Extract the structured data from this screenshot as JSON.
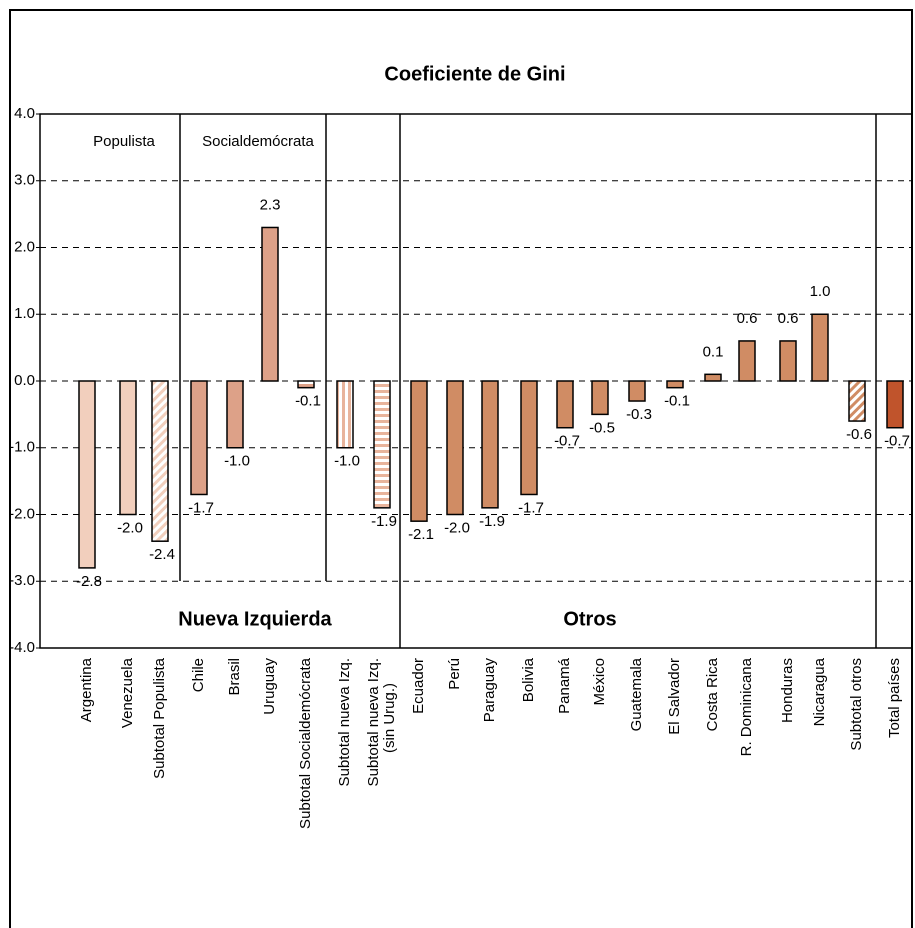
{
  "chart_data": {
    "type": "bar",
    "title": "Coeficiente de Gini",
    "categories": [
      "Argentina",
      "Venezuela",
      "Subtotal Populista",
      "Chile",
      "Brasil",
      "Uruguay",
      "Subtotal Socialdemócrata",
      "Subtotal nueva Izq.",
      "Subtotal nueva Izq.\n(sin Urug.)",
      "Ecuador",
      "Perú",
      "Paraguay",
      "Bolivia",
      "Panamá",
      "México",
      "Guatemala",
      "El Salvador",
      "Costa Rica",
      "R. Dominicana",
      "Honduras",
      "Nicaragua",
      "Subtotal otros",
      "Total países"
    ],
    "values": [
      -2.8,
      -2.0,
      -2.4,
      -1.7,
      -1.0,
      2.3,
      -0.1,
      -1.0,
      -1.9,
      -2.1,
      -2.0,
      -1.9,
      -1.7,
      -0.7,
      -0.5,
      -0.3,
      -0.1,
      0.1,
      0.6,
      0.6,
      1.0,
      -0.6,
      -0.7
    ],
    "value_labels": [
      "-2.8",
      "-2.0",
      "-2.4",
      "-1.7",
      "-1.0",
      "2.3",
      "-0.1",
      "-1.0",
      "-1.9",
      "-2.1",
      "-2.0",
      "-1.9",
      "-1.7",
      "-0.7",
      "-0.5",
      "-0.3",
      "-0.1",
      "0.1",
      "0.6",
      "0.6",
      "1.0",
      "-0.6",
      "-0.7"
    ],
    "colors": [
      "#f2cfbd",
      "#f2cfbd",
      "#f2cfbd",
      "#dda188",
      "#dda188",
      "#dda188",
      "#dda188",
      "#e8b49c",
      "#e8b49c",
      "#d08c64",
      "#d08c64",
      "#d08c64",
      "#d08c64",
      "#d08c64",
      "#d08c64",
      "#d08c64",
      "#d08c64",
      "#d08c64",
      "#d08c64",
      "#d08c64",
      "#d08c64",
      "#d08c64",
      "#c0542c"
    ],
    "hatch": [
      null,
      null,
      "diagonal",
      null,
      null,
      null,
      "horizontal",
      "vertical",
      "horizontal",
      null,
      null,
      null,
      null,
      null,
      null,
      null,
      null,
      null,
      null,
      null,
      null,
      "diagonal",
      null
    ],
    "group_labels": [
      "Populista",
      "Socialdemócrata"
    ],
    "section_labels": [
      "Nueva Izquierda",
      "Otros"
    ],
    "ylim": [
      -4,
      4
    ],
    "yticks": [
      {
        "value": 4,
        "label": "4.0"
      },
      {
        "value": 3,
        "label": "3.0"
      },
      {
        "value": 2,
        "label": "2.0"
      },
      {
        "value": 1,
        "label": "1.0"
      },
      {
        "value": 0,
        "label": "0.0"
      },
      {
        "value": -1,
        "label": "-1.0"
      },
      {
        "value": -2,
        "label": "-2.0"
      },
      {
        "value": -3,
        "label": "-3.0"
      },
      {
        "value": -4,
        "label": "-4.0"
      }
    ],
    "grid": true
  }
}
